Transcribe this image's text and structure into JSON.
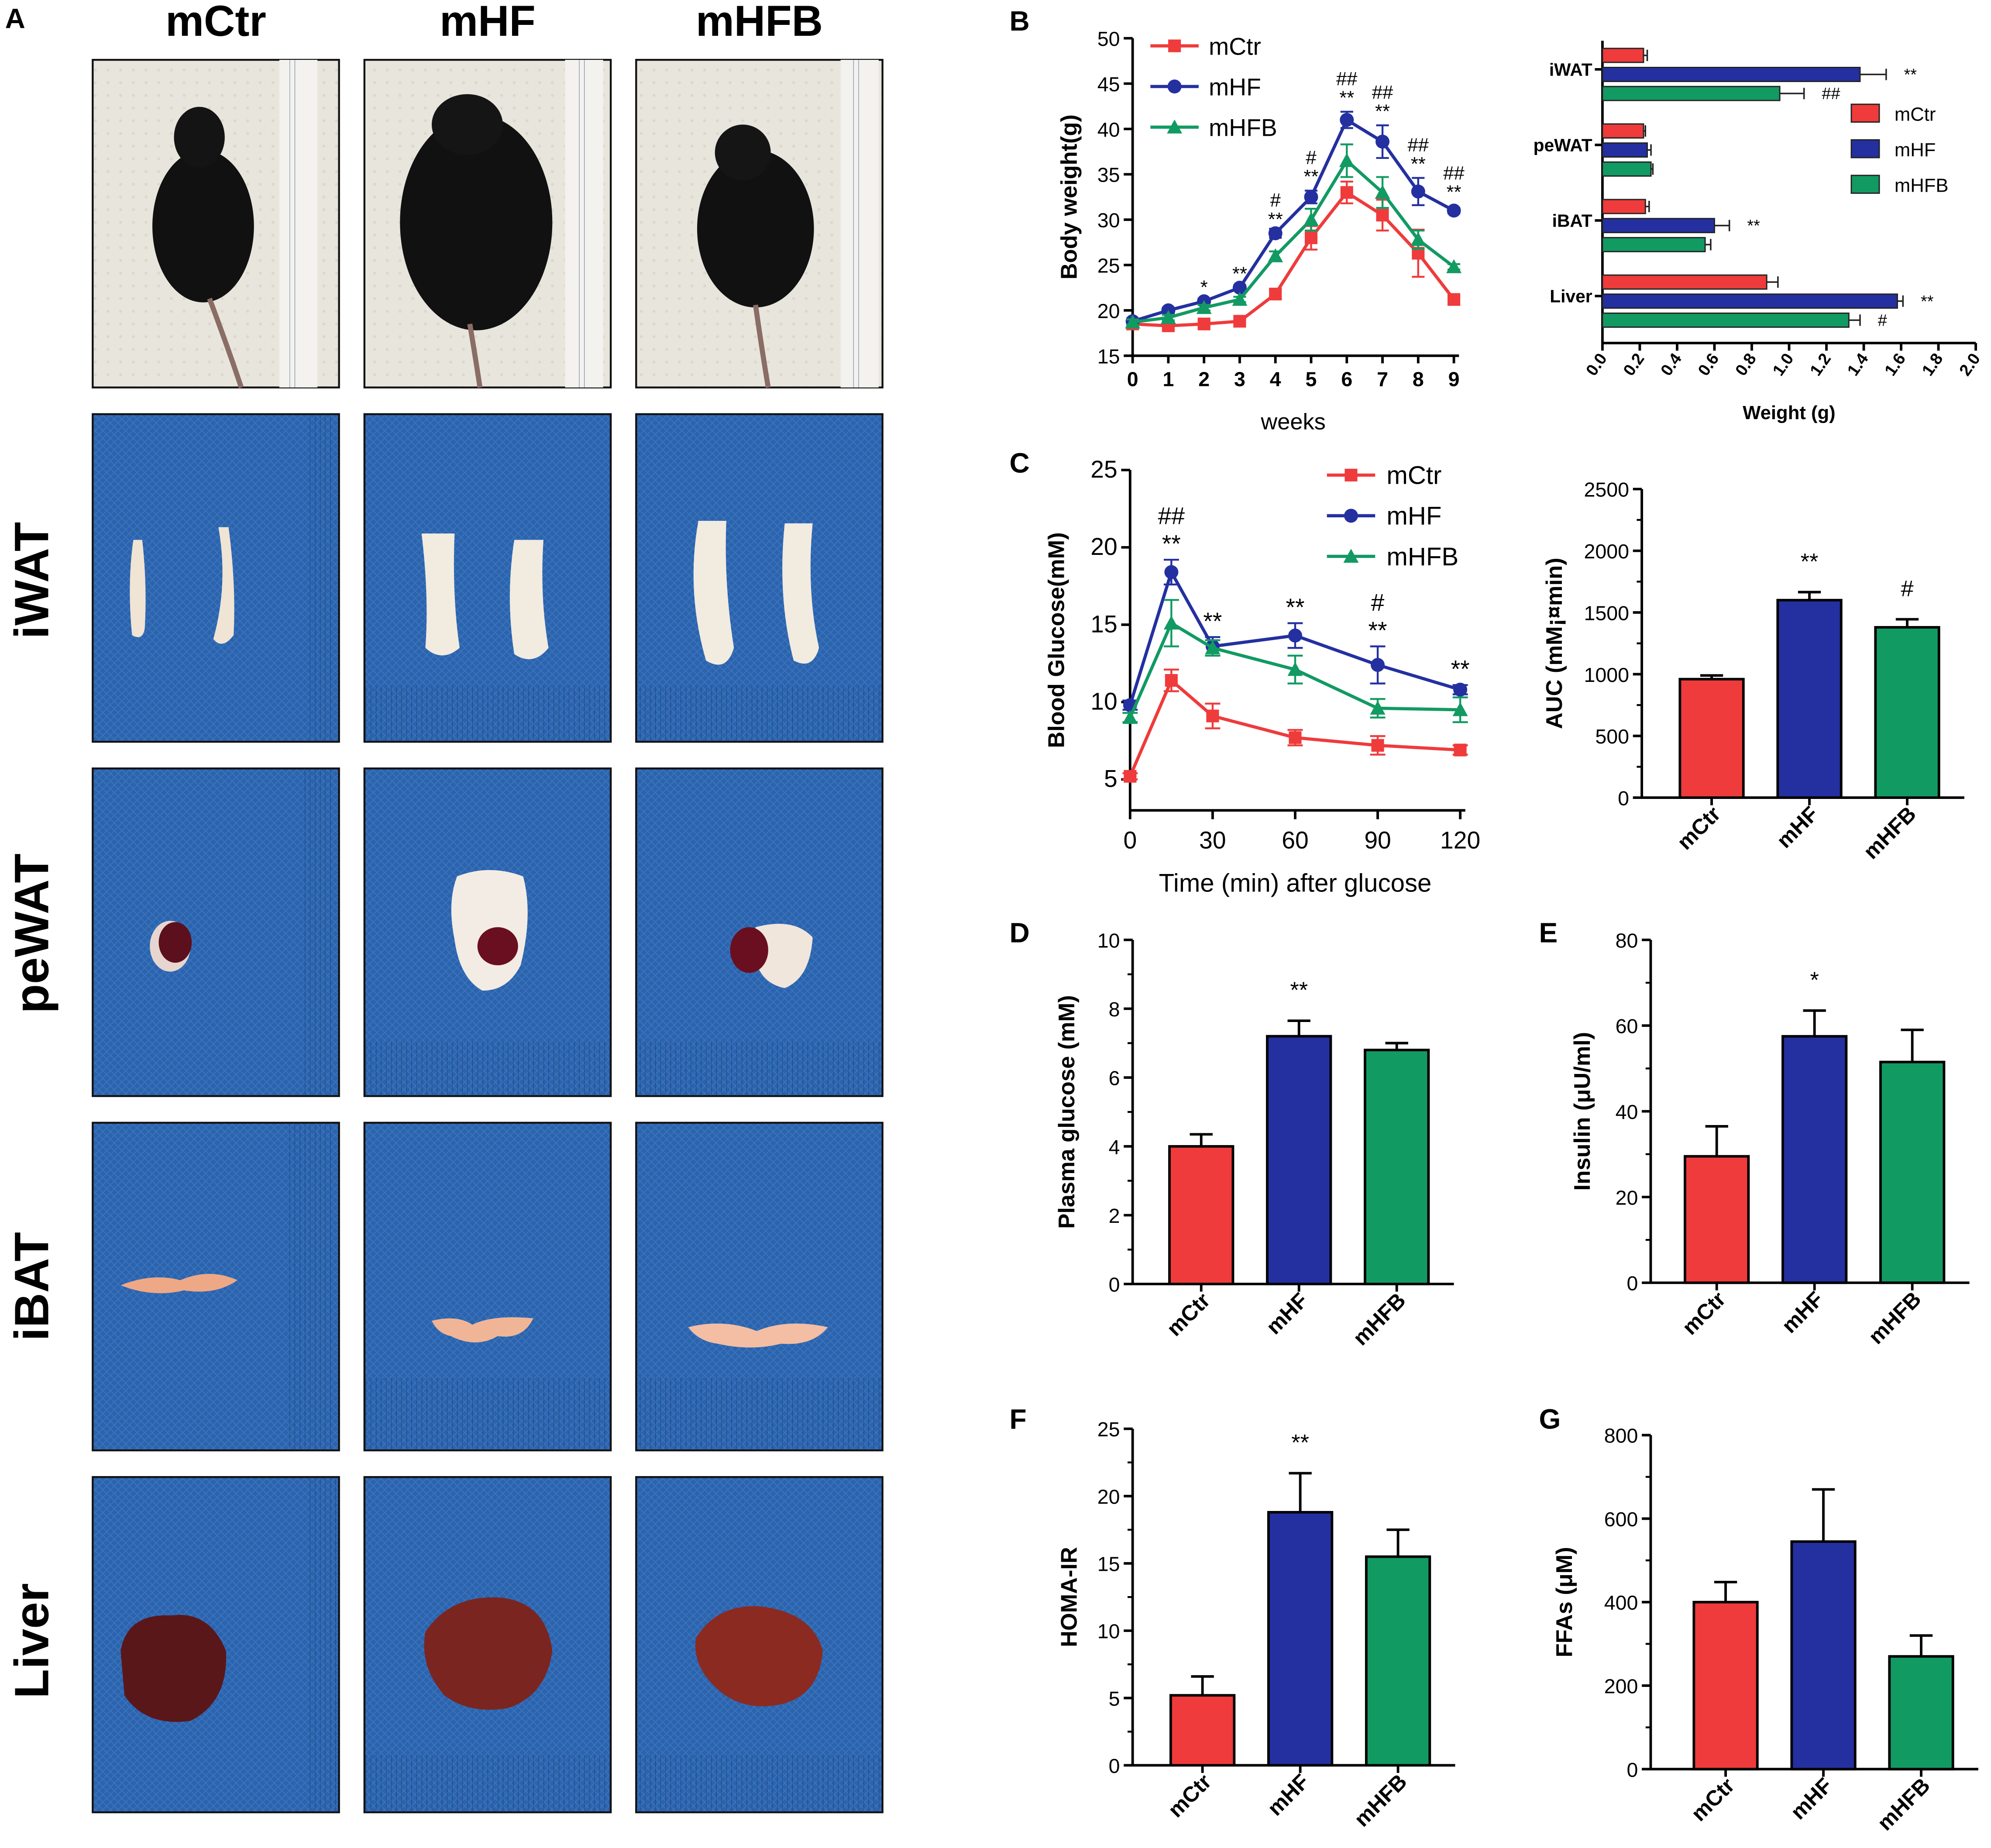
{
  "colors": {
    "ctr": "#ef3b3b",
    "hf": "#2430a0",
    "hfb": "#129a63",
    "cloth": "#2b63ad",
    "cloth_dark": "#1d4b8e",
    "paper": "#e9e6dc"
  },
  "panels": {
    "A": "A",
    "B": "B",
    "C": "C",
    "D": "D",
    "E": "E",
    "F": "F",
    "G": "G"
  },
  "panelA": {
    "columns": [
      "mCtr",
      "mHF",
      "mHFB"
    ],
    "rows": [
      "iWAT",
      "peWAT",
      "iBAT",
      "Liver"
    ]
  },
  "chart_data": [
    {
      "id": "B-body-weight",
      "type": "line",
      "xlabel": "weeks",
      "ylabel": "Body weight(g)",
      "x": [
        0,
        1,
        2,
        3,
        4,
        5,
        6,
        7,
        8,
        9
      ],
      "xlim": [
        0,
        9
      ],
      "ylim": [
        15,
        50
      ],
      "yticks": [
        15,
        20,
        25,
        30,
        35,
        40,
        45,
        50
      ],
      "series": [
        {
          "name": "mCtr",
          "marker": "square",
          "values": [
            18.5,
            18.3,
            18.5,
            18.8,
            21.8,
            28,
            33,
            30.5,
            26.3,
            21.2
          ],
          "err": [
            0.3,
            0.3,
            0.3,
            0.3,
            0.5,
            1.3,
            1.2,
            1.7,
            2.6,
            0.4
          ]
        },
        {
          "name": "mHF",
          "marker": "circle",
          "values": [
            18.8,
            20,
            21,
            22.5,
            28.5,
            32.5,
            41,
            38.6,
            33.1,
            31
          ],
          "err": [
            0.3,
            0.3,
            0.3,
            0.3,
            0.5,
            0.7,
            0.9,
            1.8,
            1.5,
            0.3
          ]
        },
        {
          "name": "mHFB",
          "marker": "triangle",
          "values": [
            18.7,
            19.2,
            20.3,
            21.2,
            26,
            30,
            36.5,
            33,
            27.8,
            24.8
          ],
          "err": [
            0.3,
            0.3,
            0.3,
            0.3,
            0.5,
            1.2,
            1.8,
            1.7,
            1.0,
            0.3
          ]
        }
      ],
      "annotations": [
        {
          "x": 2,
          "y": 21,
          "lines": [
            "*"
          ]
        },
        {
          "x": 3,
          "y": 22.5,
          "lines": [
            "**"
          ]
        },
        {
          "x": 4,
          "y": 28.5,
          "lines": [
            "#",
            "**"
          ]
        },
        {
          "x": 5,
          "y": 33.2,
          "lines": [
            "#",
            "**"
          ]
        },
        {
          "x": 6,
          "y": 41.9,
          "lines": [
            "##",
            "**"
          ]
        },
        {
          "x": 7,
          "y": 40.4,
          "lines": [
            "##",
            "**"
          ]
        },
        {
          "x": 8,
          "y": 34.6,
          "lines": [
            "##",
            "**"
          ]
        },
        {
          "x": 9,
          "y": 31.5,
          "lines": [
            "##",
            "**"
          ]
        }
      ],
      "legend": {
        "placement": "top-left",
        "entries": [
          "mCtr",
          "mHF",
          "mHFB"
        ]
      }
    },
    {
      "id": "B-tissue-weight",
      "type": "bar",
      "orientation": "horizontal",
      "xlabel": "Weight (g)",
      "xlim": [
        0,
        2.0
      ],
      "xticks": [
        0.0,
        0.2,
        0.4,
        0.6,
        0.8,
        1.0,
        1.2,
        1.4,
        1.6,
        1.8,
        2.0
      ],
      "categories": [
        "iWAT",
        "peWAT",
        "iBAT",
        "Liver"
      ],
      "series": [
        {
          "name": "mCtr",
          "values": [
            0.22,
            0.22,
            0.23,
            0.88
          ],
          "err": [
            0.02,
            0.01,
            0.02,
            0.06
          ]
        },
        {
          "name": "mHF",
          "values": [
            1.38,
            0.24,
            0.6,
            1.58
          ],
          "err": [
            0.14,
            0.02,
            0.08,
            0.03
          ]
        },
        {
          "name": "mHFB",
          "values": [
            0.95,
            0.26,
            0.55,
            1.32
          ],
          "err": [
            0.13,
            0.01,
            0.03,
            0.06
          ]
        }
      ],
      "annotations": [
        {
          "category": "iWAT",
          "series": "mHF",
          "text": "**"
        },
        {
          "category": "iWAT",
          "series": "mHFB",
          "text": "##"
        },
        {
          "category": "iBAT",
          "series": "mHF",
          "text": "**"
        },
        {
          "category": "Liver",
          "series": "mHF",
          "text": "**"
        },
        {
          "category": "Liver",
          "series": "mHFB",
          "text": "#"
        }
      ],
      "legend": {
        "placement": "right",
        "entries": [
          "mCtr",
          "mHF",
          "mHFB"
        ]
      }
    },
    {
      "id": "C-glucose-tolerance",
      "type": "line",
      "xlabel": "Time (min) after glucose",
      "ylabel": "Blood Glucose(mM)",
      "x": [
        0,
        15,
        30,
        60,
        90,
        120
      ],
      "xlim": [
        0,
        120
      ],
      "xticks": [
        0,
        30,
        60,
        90,
        120
      ],
      "ylim": [
        3,
        25
      ],
      "yticks": [
        5,
        10,
        15,
        20,
        25
      ],
      "series": [
        {
          "name": "mCtr",
          "marker": "square",
          "values": [
            5.2,
            11.4,
            9.1,
            7.7,
            7.2,
            6.9
          ],
          "err": [
            0.2,
            0.7,
            0.8,
            0.5,
            0.6,
            0.3
          ]
        },
        {
          "name": "mHF",
          "marker": "circle",
          "values": [
            9.8,
            18.4,
            13.6,
            14.3,
            12.4,
            10.8
          ],
          "err": [
            0.3,
            0.8,
            0.6,
            0.8,
            1.2,
            0.3
          ]
        },
        {
          "name": "mHFB",
          "marker": "triangle",
          "values": [
            9.0,
            15.1,
            13.5,
            12.1,
            9.6,
            9.5
          ],
          "err": [
            0.3,
            1.5,
            0.5,
            0.9,
            0.6,
            0.8
          ]
        }
      ],
      "annotations": [
        {
          "x": 15,
          "y": 19.2,
          "lines": [
            "##",
            "**"
          ]
        },
        {
          "x": 30,
          "y": 14.2,
          "lines": [
            "**"
          ]
        },
        {
          "x": 60,
          "y": 15.1,
          "lines": [
            "**"
          ]
        },
        {
          "x": 90,
          "y": 13.6,
          "lines": [
            "#",
            "**"
          ]
        },
        {
          "x": 120,
          "y": 11.1,
          "lines": [
            "**"
          ]
        }
      ],
      "legend": {
        "placement": "top-right",
        "entries": [
          "mCtr",
          "mHF",
          "mHFB"
        ]
      }
    },
    {
      "id": "C-auc",
      "type": "bar",
      "ylabel": "AUC (mM¡¤min)",
      "categories": [
        "mCtr",
        "mHF",
        "mHFB"
      ],
      "values": [
        960,
        1600,
        1380
      ],
      "err": [
        30,
        65,
        65
      ],
      "ylim": [
        0,
        2500
      ],
      "yticks": [
        0,
        500,
        1000,
        1500,
        2000,
        2500
      ],
      "annotations": [
        {
          "category": "mHF",
          "text": "**"
        },
        {
          "category": "mHFB",
          "text": "#"
        }
      ]
    },
    {
      "id": "D-plasma-glucose",
      "type": "bar",
      "ylabel": "Plasma glucose (mM)",
      "categories": [
        "mCtr",
        "mHF",
        "mHFB"
      ],
      "values": [
        4.0,
        7.2,
        6.8
      ],
      "err": [
        0.35,
        0.45,
        0.2
      ],
      "ylim": [
        0,
        10
      ],
      "yticks": [
        0,
        2,
        4,
        6,
        8,
        10
      ],
      "annotations": [
        {
          "category": "mHF",
          "text": "**"
        }
      ]
    },
    {
      "id": "E-insulin",
      "type": "bar",
      "ylabel": "Insulin (μU/ml)",
      "categories": [
        "mCtr",
        "mHF",
        "mHFB"
      ],
      "values": [
        29.5,
        57.5,
        51.5
      ],
      "err": [
        7,
        6,
        7.5
      ],
      "ylim": [
        0,
        80
      ],
      "yticks": [
        0,
        20,
        40,
        60,
        80
      ],
      "annotations": [
        {
          "category": "mHF",
          "text": "*"
        }
      ]
    },
    {
      "id": "F-homa-ir",
      "type": "bar",
      "ylabel": "HOMA-IR",
      "categories": [
        "mCtr",
        "mHF",
        "mHFB"
      ],
      "values": [
        5.2,
        18.8,
        15.5
      ],
      "err": [
        1.4,
        2.9,
        2.0
      ],
      "ylim": [
        0,
        25
      ],
      "yticks": [
        0,
        5,
        10,
        15,
        20,
        25
      ],
      "annotations": [
        {
          "category": "mHF",
          "text": "**"
        }
      ]
    },
    {
      "id": "G-ffas",
      "type": "bar",
      "ylabel": "FFAs (μM)",
      "categories": [
        "mCtr",
        "mHF",
        "mHFB"
      ],
      "values": [
        400,
        545,
        270
      ],
      "err": [
        48,
        125,
        50
      ],
      "ylim": [
        0,
        800
      ],
      "yticks": [
        0,
        200,
        400,
        600,
        800
      ],
      "annotations": []
    }
  ]
}
